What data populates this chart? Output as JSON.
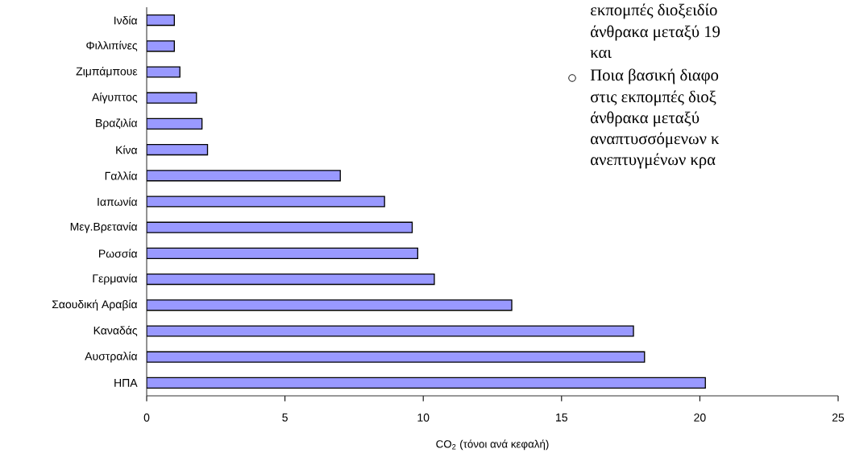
{
  "chart_data": {
    "type": "bar",
    "orientation": "horizontal",
    "categories": [
      "Ινδία",
      "Φιλλιπίνες",
      "Ζιμπάμπουε",
      "Αίγυπτος",
      "Βραζιλία",
      "Κίνα",
      "Γαλλία",
      "Ιαπωνία",
      "Μεγ.Βρετανία",
      "Ρωσσία",
      "Γερμανία",
      "Σαουδική Αραβία",
      "Καναδάς",
      "Αυστραλία",
      "ΗΠΑ"
    ],
    "values": [
      1.0,
      1.0,
      1.2,
      1.8,
      2.0,
      2.2,
      7.0,
      8.6,
      9.6,
      9.8,
      10.4,
      13.2,
      17.6,
      18.0,
      20.2
    ],
    "color": "#9999ff",
    "xlabel": "CO$_{2}$ (τόνοι ανά κεφαλή)",
    "xlim": [
      0,
      25
    ],
    "xticks": [
      0,
      5,
      10,
      15,
      20,
      25
    ],
    "annotations": [
      "εκπομπές διοξειδίο",
      "άνθρακα μεταξύ 19",
      "και",
      "Ποια βασική διαφο",
      "στις εκπομπές διοξ",
      "άνθρακα μεταξύ",
      "αναπτυσσόμενων κ",
      "ανεπτυγμένων κρα"
    ]
  }
}
